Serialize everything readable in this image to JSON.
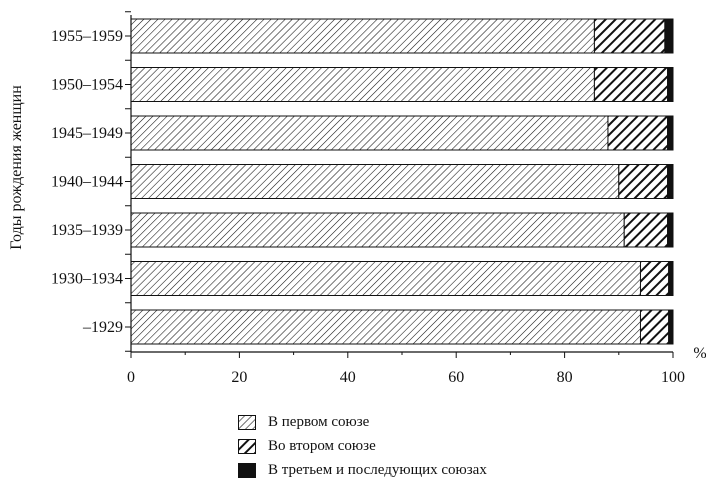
{
  "chart_data": {
    "type": "bar",
    "orientation": "horizontal",
    "stacked": true,
    "ylabel": "Годы рождения женщин",
    "unit_label": "%",
    "xlim": [
      0,
      100
    ],
    "xticks": [
      0,
      20,
      40,
      60,
      80,
      100
    ],
    "categories": [
      "1955–1959",
      "1950–1954",
      "1945–1949",
      "1940–1944",
      "1935–1939",
      "1930–1934",
      "–1929"
    ],
    "series": [
      {
        "name": "В первом союзе",
        "values": [
          85.5,
          85.5,
          88,
          90,
          91,
          94,
          94
        ],
        "pattern": "fine-diagonal-hatch"
      },
      {
        "name": "Во втором союзе",
        "values": [
          13,
          13.5,
          11,
          9,
          8,
          5.2,
          5.2
        ],
        "pattern": "bold-diagonal-hatch"
      },
      {
        "name": "В третьем и последующих союзах",
        "values": [
          1.5,
          1,
          1,
          1,
          1,
          0.8,
          0.8
        ],
        "pattern": "solid-black"
      }
    ],
    "grid": false,
    "legend_position": "bottom"
  },
  "icons": {
    "fine_hatch": "fine-diagonal-hatch-swatch",
    "bold_hatch": "bold-diagonal-hatch-swatch",
    "solid": "solid-black-swatch"
  }
}
